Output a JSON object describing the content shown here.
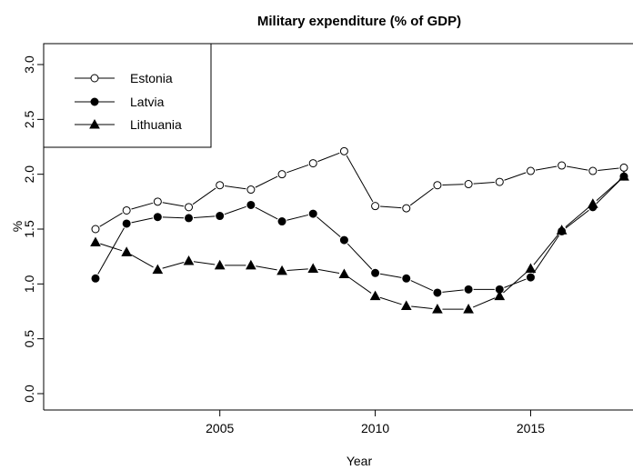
{
  "chart_data": {
    "type": "line",
    "title": "Military expenditure (% of GDP)",
    "xlabel": "Year",
    "ylabel": "%",
    "x": [
      2001,
      2002,
      2003,
      2004,
      2005,
      2006,
      2007,
      2008,
      2009,
      2010,
      2011,
      2012,
      2013,
      2014,
      2015,
      2016,
      2017,
      2018
    ],
    "xlim": [
      2001,
      2018
    ],
    "ylim": [
      0.0,
      3.0
    ],
    "xticks": [
      2005,
      2010,
      2015
    ],
    "xtick_labels": [
      "2005",
      "2010",
      "2015"
    ],
    "yticks": [
      0.0,
      0.5,
      1.0,
      1.5,
      2.0,
      2.5,
      3.0
    ],
    "ytick_labels": [
      "0.0",
      "0.5",
      "1.0",
      "1.5",
      "2.0",
      "2.5",
      "3.0"
    ],
    "grid": false,
    "legend_position": "top-left",
    "series": [
      {
        "name": "Estonia",
        "marker": "open-circle",
        "values": [
          1.5,
          1.67,
          1.75,
          1.7,
          1.9,
          1.86,
          2.0,
          2.1,
          2.21,
          1.71,
          1.69,
          1.9,
          1.91,
          1.93,
          2.03,
          2.08,
          2.03,
          2.06
        ]
      },
      {
        "name": "Latvia",
        "marker": "filled-circle",
        "values": [
          1.05,
          1.55,
          1.61,
          1.6,
          1.62,
          1.72,
          1.57,
          1.64,
          1.4,
          1.1,
          1.05,
          0.92,
          0.95,
          0.95,
          1.06,
          1.48,
          1.7,
          1.98
        ]
      },
      {
        "name": "Lithuania",
        "marker": "filled-triangle",
        "values": [
          1.38,
          1.29,
          1.13,
          1.21,
          1.17,
          1.17,
          1.12,
          1.14,
          1.09,
          0.89,
          0.8,
          0.77,
          0.77,
          0.89,
          1.14,
          1.49,
          1.73,
          1.98
        ]
      }
    ]
  }
}
